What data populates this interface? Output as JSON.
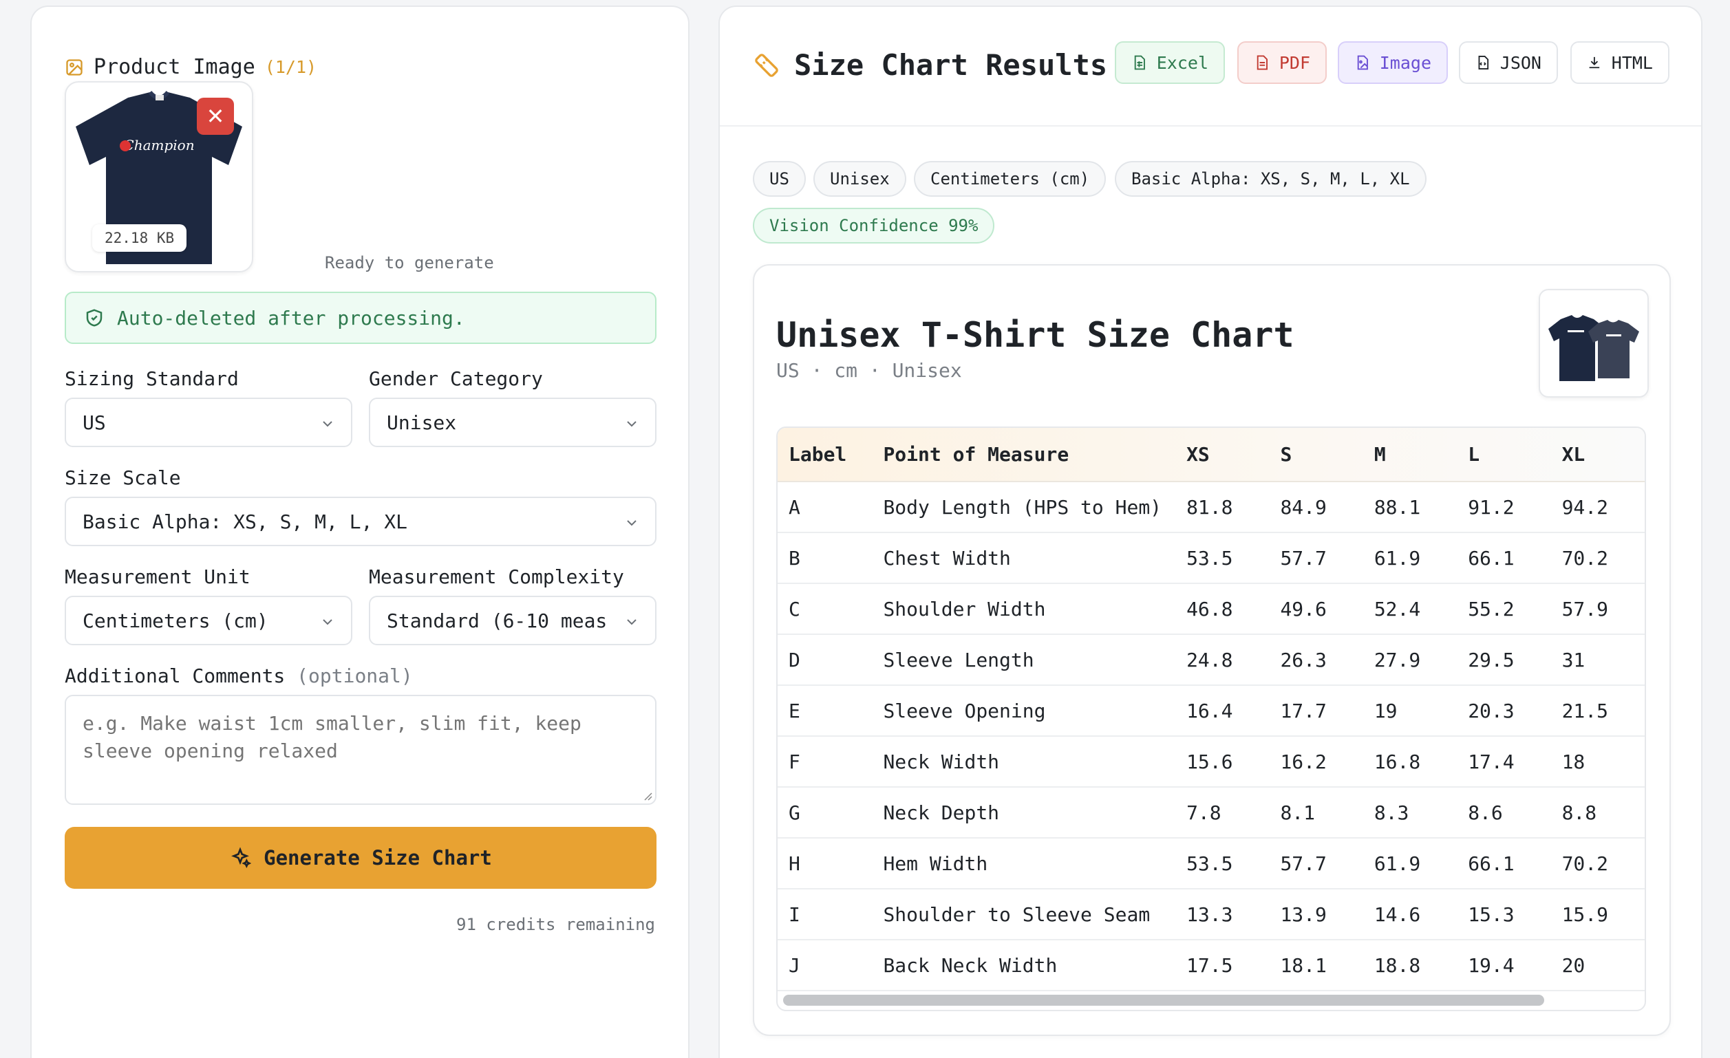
{
  "left": {
    "product_image": {
      "title": "Product Image",
      "count": "(1/1)",
      "file_size": "22.18 KB",
      "remove_label": "✕",
      "status": "Ready to generate"
    },
    "notice": "Auto-deleted after processing.",
    "fields": {
      "sizing_standard": {
        "label": "Sizing Standard",
        "value": "US"
      },
      "gender_category": {
        "label": "Gender Category",
        "value": "Unisex"
      },
      "size_scale": {
        "label": "Size Scale",
        "value": "Basic Alpha: XS, S, M, L, XL"
      },
      "measurement_unit": {
        "label": "Measurement Unit",
        "value": "Centimeters (cm)"
      },
      "measurement_complexity": {
        "label": "Measurement Complexity",
        "value": "Standard (6-10 meas"
      },
      "additional_comments": {
        "label": "Additional Comments",
        "optional": "(optional)",
        "placeholder": "e.g. Make waist 1cm smaller, slim fit, keep sleeve opening relaxed"
      }
    },
    "generate_label": "Generate Size Chart",
    "credits": "91 credits remaining"
  },
  "right": {
    "title": "Size Chart Results",
    "exports": {
      "excel": "Excel",
      "pdf": "PDF",
      "image": "Image",
      "json": "JSON",
      "html": "HTML"
    },
    "chips": {
      "standard": "US",
      "gender": "Unisex",
      "unit": "Centimeters (cm)",
      "scale": "Basic Alpha: XS, S, M, L, XL",
      "confidence": "Vision Confidence 99%"
    },
    "chart": {
      "title": "Unisex T-Shirt Size Chart",
      "subtitle": "US · cm · Unisex",
      "headers": [
        "Label",
        "Point of Measure",
        "XS",
        "S",
        "M",
        "L",
        "XL"
      ],
      "rows": [
        [
          "A",
          "Body Length (HPS to Hem)",
          "81.8",
          "84.9",
          "88.1",
          "91.2",
          "94.2"
        ],
        [
          "B",
          "Chest Width",
          "53.5",
          "57.7",
          "61.9",
          "66.1",
          "70.2"
        ],
        [
          "C",
          "Shoulder Width",
          "46.8",
          "49.6",
          "52.4",
          "55.2",
          "57.9"
        ],
        [
          "D",
          "Sleeve Length",
          "24.8",
          "26.3",
          "27.9",
          "29.5",
          "31"
        ],
        [
          "E",
          "Sleeve Opening",
          "16.4",
          "17.7",
          "19",
          "20.3",
          "21.5"
        ],
        [
          "F",
          "Neck Width",
          "15.6",
          "16.2",
          "16.8",
          "17.4",
          "18"
        ],
        [
          "G",
          "Neck Depth",
          "7.8",
          "8.1",
          "8.3",
          "8.6",
          "8.8"
        ],
        [
          "H",
          "Hem Width",
          "53.5",
          "57.7",
          "61.9",
          "66.1",
          "70.2"
        ],
        [
          "I",
          "Shoulder to Sleeve Seam",
          "13.3",
          "13.9",
          "14.6",
          "15.3",
          "15.9"
        ],
        [
          "J",
          "Back Neck Width",
          "17.5",
          "18.1",
          "18.8",
          "19.4",
          "20"
        ]
      ]
    }
  },
  "colors": {
    "accent": "#e8a232",
    "danger": "#d9453d",
    "success_text": "#2e7a4e",
    "success_bg": "#eefbf3"
  }
}
